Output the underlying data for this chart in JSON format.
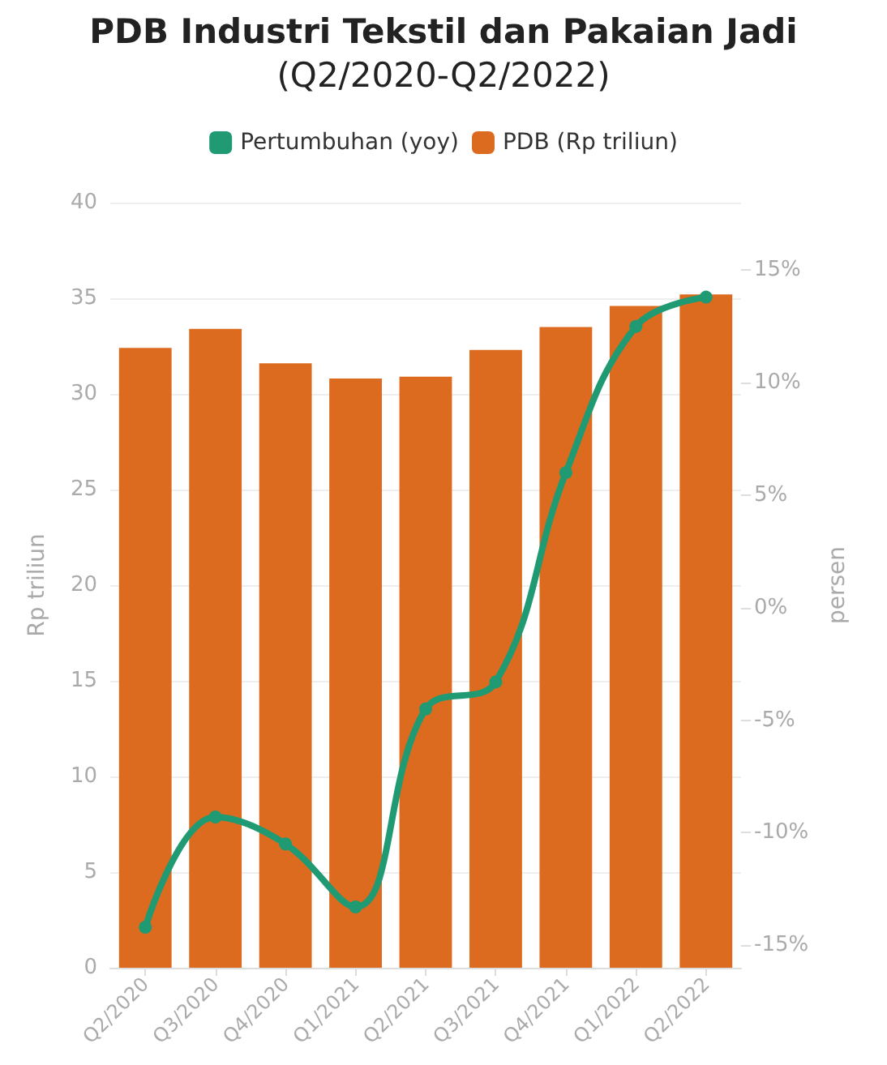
{
  "chart_data": {
    "type": "bar",
    "title": "PDB Industri Tekstil dan Pakaian Jadi",
    "subtitle": "(Q2/2020-Q2/2022)",
    "categories": [
      "Q2/2020",
      "Q3/2020",
      "Q4/2020",
      "Q1/2021",
      "Q2/2021",
      "Q3/2021",
      "Q4/2021",
      "Q1/2022",
      "Q2/2022"
    ],
    "series": [
      {
        "name": "Pertumbuhan (yoy)",
        "type": "line",
        "axis": "y2",
        "color": "#1f9a72",
        "values": [
          -14.2,
          -9.3,
          -10.5,
          -13.3,
          -4.5,
          -3.3,
          6.0,
          12.5,
          13.8
        ]
      },
      {
        "name": "PDB (Rp triliun)",
        "color": "#dd6b1f",
        "values": [
          32.4,
          33.4,
          31.6,
          30.8,
          30.9,
          32.3,
          33.5,
          34.6,
          35.2
        ]
      }
    ],
    "ylabel": "Rp triliun",
    "y2label": "persen",
    "ylim": [
      0,
      40
    ],
    "yticks": [
      0,
      5,
      10,
      15,
      20,
      25,
      30,
      35,
      40
    ],
    "y2lim": [
      -16,
      18
    ],
    "y2ticks": [
      {
        "value": -15,
        "label": "-15%"
      },
      {
        "value": -10,
        "label": "-10%"
      },
      {
        "value": -5,
        "label": "-5%"
      },
      {
        "value": 0,
        "label": "0%"
      },
      {
        "value": 5,
        "label": "5%"
      },
      {
        "value": 10,
        "label": "10%"
      },
      {
        "value": 15,
        "label": "15%"
      }
    ],
    "grid": "y",
    "legend": "top",
    "marker": "circle"
  }
}
